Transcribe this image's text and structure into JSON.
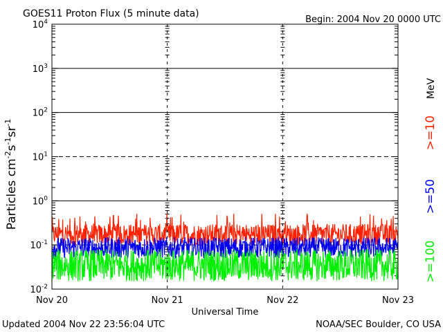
{
  "chart_data": {
    "type": "line",
    "title": "GOES11 Proton Flux (5 minute data)",
    "begin_label": "Begin: 2004 Nov 20 0000 UTC",
    "ylabel": "Particles cm",
    "xlabel": "Universal Time",
    "x_ticks": [
      "Nov 20",
      "Nov 21",
      "Nov 22",
      "Nov 23"
    ],
    "x_range": [
      "2004-11-20T00:00Z",
      "2004-11-23T00:00Z"
    ],
    "yscale": "log",
    "ylim": [
      0.01,
      10000
    ],
    "y_ticks": [
      {
        "value": 0.01,
        "base": "10",
        "exp": "-2"
      },
      {
        "value": 0.1,
        "base": "10",
        "exp": "-1"
      },
      {
        "value": 1,
        "base": "10",
        "exp": "0"
      },
      {
        "value": 10,
        "base": "10",
        "exp": "1"
      },
      {
        "value": 100,
        "base": "10",
        "exp": "2"
      },
      {
        "value": 1000,
        "base": "10",
        "exp": "3"
      },
      {
        "value": 10000,
        "base": "10",
        "exp": "4"
      }
    ],
    "threshold_lines": [
      {
        "value": 10,
        "style": "dashed"
      },
      {
        "value": 0.1,
        "style": "dashed"
      }
    ],
    "unit_label": "MeV",
    "series": [
      {
        "name": ">=10",
        "color": "#ff2000",
        "low": 0.1,
        "high": 0.3
      },
      {
        "name": ">=50",
        "color": "#0000ee",
        "low": 0.05,
        "high": 0.15
      },
      {
        "name": ">=100",
        "color": "#00ee00",
        "low": 0.015,
        "high": 0.08
      }
    ]
  },
  "footer": {
    "updated": "Updated 2004 Nov 22 23:56:04 UTC",
    "source": "NOAA/SEC Boulder, CO USA"
  }
}
